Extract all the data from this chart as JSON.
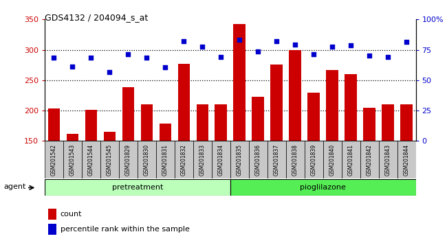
{
  "title": "GDS4132 / 204094_s_at",
  "samples": [
    "GSM201542",
    "GSM201543",
    "GSM201544",
    "GSM201545",
    "GSM201829",
    "GSM201830",
    "GSM201831",
    "GSM201832",
    "GSM201833",
    "GSM201834",
    "GSM201835",
    "GSM201836",
    "GSM201837",
    "GSM201838",
    "GSM201839",
    "GSM201840",
    "GSM201841",
    "GSM201842",
    "GSM201843",
    "GSM201844"
  ],
  "counts": [
    203,
    162,
    201,
    165,
    238,
    210,
    179,
    277,
    210,
    210,
    342,
    223,
    276,
    300,
    230,
    267,
    260,
    205,
    210,
    210
  ],
  "percentile_vals": [
    287,
    272,
    287,
    263,
    293,
    287,
    271,
    314,
    305,
    288,
    316,
    297,
    314,
    309,
    293,
    305,
    307,
    290,
    288,
    313
  ],
  "bar_color": "#cc0000",
  "dot_color": "#0000cc",
  "ylim_left": [
    150,
    350
  ],
  "yticks_left": [
    150,
    200,
    250,
    300,
    350
  ],
  "ytick_labels_right": [
    "0",
    "25",
    "50",
    "75",
    "100%"
  ],
  "right_tick_positions": [
    150,
    200,
    250,
    300,
    350
  ],
  "group1_label": "pretreatment",
  "group2_label": "pioglilazone",
  "group1_color": "#bbffbb",
  "group2_color": "#55ee55",
  "agent_label": "agent",
  "legend_count": "count",
  "legend_percentile": "percentile rank within the sample",
  "plot_bg_color": "#ffffff",
  "xtick_bg_color": "#c8c8c8",
  "dotted_lines": [
    200,
    250,
    300
  ],
  "bar_bottom": 150,
  "bar_width": 0.65,
  "n_group1": 10,
  "n_group2": 10
}
